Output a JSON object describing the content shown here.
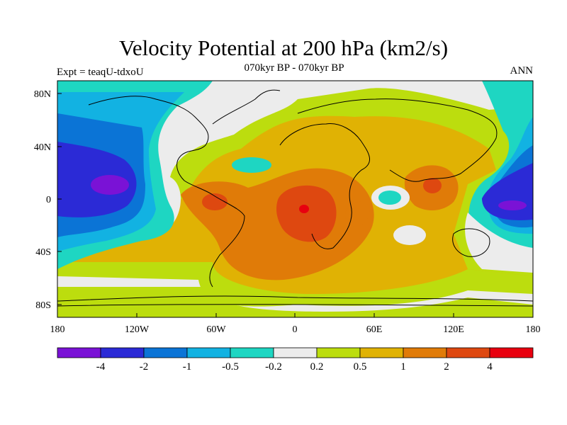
{
  "title": "Velocity Potential at 200 hPa (km2/s)",
  "subtitle": "070kyr BP - 070kyr BP",
  "left_label": "Expt = teaqU-tdxoU",
  "right_label": "ANN",
  "axes": {
    "x_ticks": [
      "180",
      "120W",
      "60W",
      "0",
      "60E",
      "120E",
      "180"
    ],
    "y_ticks": [
      "80N",
      "40N",
      "0",
      "40S",
      "80S"
    ]
  },
  "colorbar": {
    "colors": [
      "#7a12d6",
      "#2b2ad6",
      "#0b74d6",
      "#12b2e2",
      "#1ed6c2",
      "#ececec",
      "#bcdd0e",
      "#e0b204",
      "#e07b08",
      "#de4810",
      "#e8000f"
    ],
    "labels": [
      "-4",
      "-2",
      "-1",
      "-0.5",
      "-0.2",
      "0.2",
      "0.5",
      "1",
      "2",
      "4"
    ]
  },
  "map": {
    "lon_range": [
      -180,
      180
    ],
    "lat_range": [
      -90,
      90
    ]
  }
}
